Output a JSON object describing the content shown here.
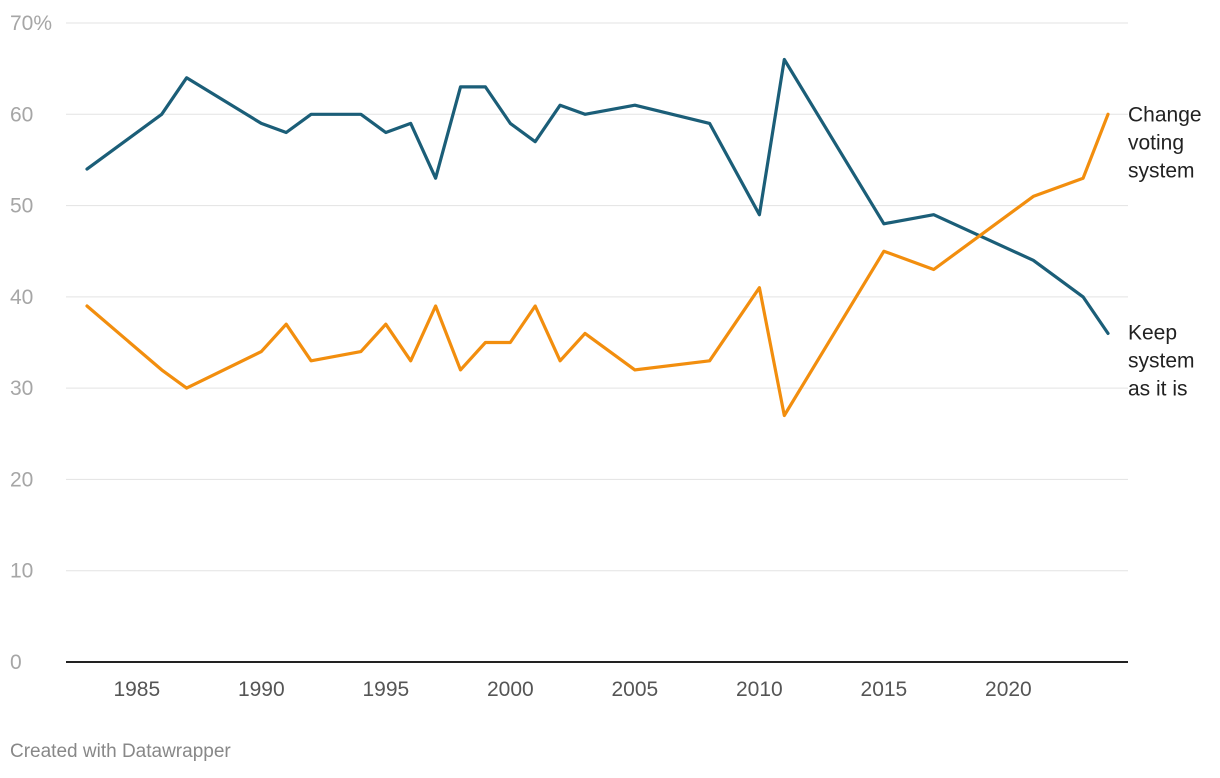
{
  "chart_data": {
    "type": "line",
    "title": "",
    "xlabel": "",
    "ylabel": "",
    "xlim": [
      1983,
      2024
    ],
    "ylim": [
      0,
      70
    ],
    "y_ticks": [
      0,
      10,
      20,
      30,
      40,
      50,
      60,
      70
    ],
    "y_tick_labels": [
      "0",
      "10",
      "20",
      "30",
      "40",
      "50",
      "60",
      "70%"
    ],
    "x_ticks": [
      1985,
      1990,
      1995,
      2000,
      2005,
      2010,
      2015,
      2020
    ],
    "x_tick_labels": [
      "1985",
      "1990",
      "1995",
      "2000",
      "2005",
      "2010",
      "2015",
      "2020"
    ],
    "grid": true,
    "legend": "direct labels at right end of lines",
    "series": [
      {
        "name": "Keep system as it is",
        "label_lines": [
          "Keep",
          "system",
          "as it is"
        ],
        "color": "#1b5e78",
        "x": [
          1983,
          1986,
          1987,
          1990,
          1991,
          1992,
          1994,
          1995,
          1996,
          1997,
          1998,
          1999,
          2000,
          2001,
          2002,
          2003,
          2005,
          2008,
          2010,
          2011,
          2015,
          2017,
          2021,
          2023,
          2024
        ],
        "values": [
          54,
          60,
          64,
          59,
          58,
          60,
          60,
          58,
          59,
          53,
          63,
          63,
          59,
          57,
          61,
          60,
          61,
          59,
          49,
          66,
          48,
          49,
          44,
          40,
          36
        ]
      },
      {
        "name": "Change voting system",
        "label_lines": [
          "Change",
          "voting",
          "system"
        ],
        "color": "#f28e0e",
        "x": [
          1983,
          1986,
          1987,
          1990,
          1991,
          1992,
          1994,
          1995,
          1996,
          1997,
          1998,
          1999,
          2000,
          2001,
          2002,
          2003,
          2005,
          2008,
          2010,
          2011,
          2015,
          2017,
          2021,
          2023,
          2024
        ],
        "values": [
          39,
          32,
          30,
          34,
          37,
          33,
          34,
          37,
          33,
          39,
          32,
          35,
          35,
          39,
          33,
          36,
          32,
          33,
          41,
          27,
          45,
          43,
          51,
          53,
          60
        ]
      }
    ]
  },
  "footer": {
    "credit": "Created with Datawrapper"
  }
}
